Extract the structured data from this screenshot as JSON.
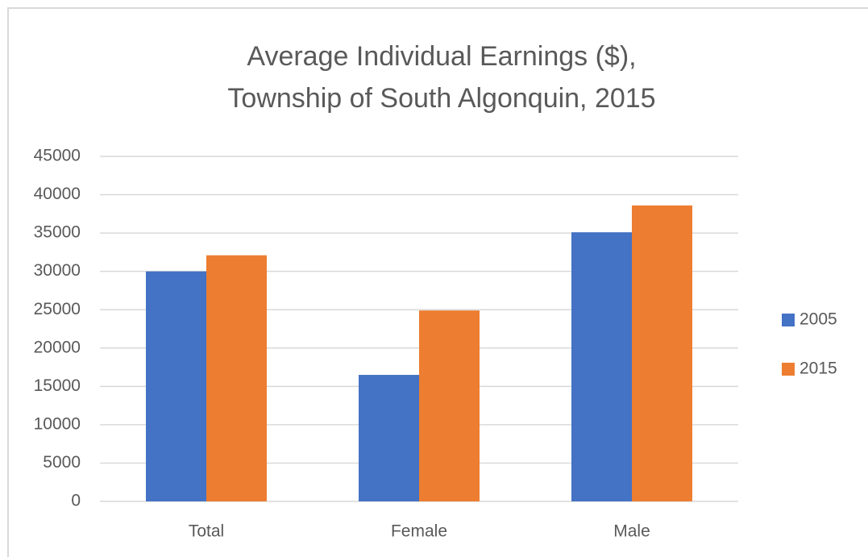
{
  "chart_data": {
    "type": "bar",
    "title": [
      "Average Individual Earnings ($),",
      "Township of South Algonquin, 2015"
    ],
    "categories": [
      "Total",
      "Female",
      "Male"
    ],
    "series": [
      {
        "name": "2005",
        "color": "#4472c4",
        "values": [
          30000,
          16500,
          35100
        ]
      },
      {
        "name": "2015",
        "color": "#ed7d31",
        "values": [
          32100,
          24900,
          38600
        ]
      }
    ],
    "ylim": [
      0,
      45000
    ],
    "yticks": [
      0,
      5000,
      10000,
      15000,
      20000,
      25000,
      30000,
      35000,
      40000,
      45000
    ],
    "grid": true,
    "legend": "right"
  }
}
